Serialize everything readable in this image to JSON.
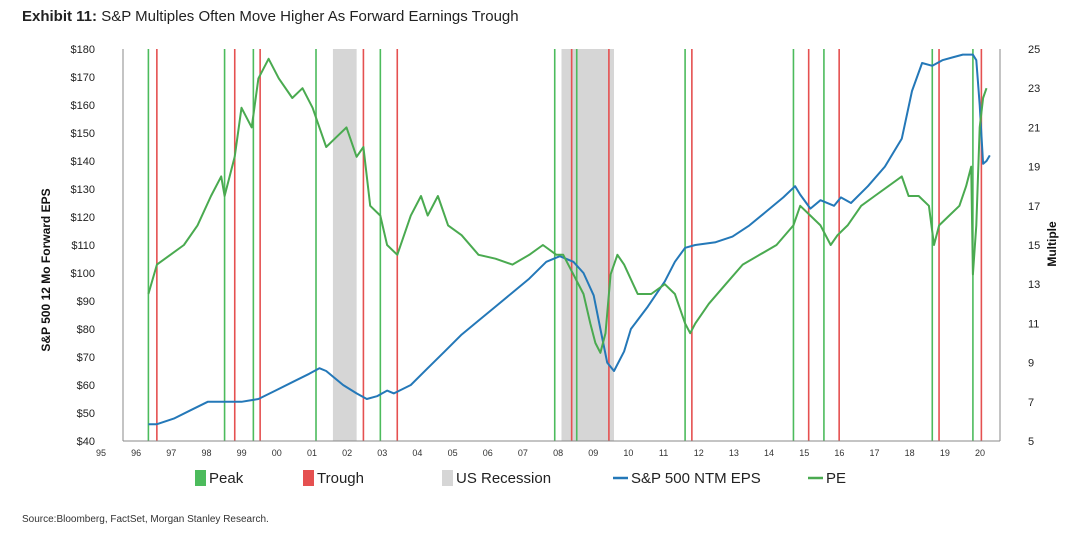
{
  "title": {
    "lead": "Exhibit 11:",
    "text": "S&P Multiples Often Move Higher As Forward Earnings Trough"
  },
  "source": "Source:Bloomberg, FactSet, Morgan Stanley Research.",
  "colors": {
    "peak": "#4cbb5c",
    "trough": "#e55050",
    "recession": "#d6d6d6",
    "eps": "#2478b8",
    "pe": "#4aaa50"
  },
  "chart_data": {
    "type": "line",
    "ylabel": "S&P 500 12 Mo Forward EPS",
    "y2label": "Multiple",
    "x_ticks": [
      "95",
      "96",
      "97",
      "98",
      "99",
      "00",
      "01",
      "02",
      "03",
      "04",
      "05",
      "06",
      "07",
      "08",
      "09",
      "10",
      "11",
      "12",
      "13",
      "14",
      "15",
      "16",
      "17",
      "18",
      "19",
      "20"
    ],
    "x_range": [
      1995,
      2020.9
    ],
    "y_left_ticks": [
      "$40",
      "$50",
      "$60",
      "$70",
      "$80",
      "$90",
      "$100",
      "$110",
      "$120",
      "$130",
      "$140",
      "$150",
      "$160",
      "$170",
      "$180"
    ],
    "y_left_range": [
      40,
      180
    ],
    "y_right_ticks": [
      "5",
      "7",
      "9",
      "11",
      "13",
      "15",
      "17",
      "19",
      "21",
      "23",
      "25"
    ],
    "y_right_range": [
      5,
      25
    ],
    "grid": false,
    "legend": {
      "position": "bottom",
      "items": [
        {
          "label": "Peak",
          "kind": "box",
          "color": "#4cbb5c"
        },
        {
          "label": "Trough",
          "kind": "box",
          "color": "#e55050"
        },
        {
          "label": "US Recession",
          "kind": "box",
          "color": "#d6d6d6"
        },
        {
          "label": "S&P 500 NTM EPS",
          "kind": "line",
          "color": "#2478b8"
        },
        {
          "label": "PE",
          "kind": "line",
          "color": "#4aaa50"
        }
      ]
    },
    "recessions": [
      [
        2001.2,
        2001.9
      ],
      [
        2007.95,
        2009.5
      ]
    ],
    "peaks": [
      1995.75,
      1998.0,
      1998.85,
      2000.7,
      2002.6,
      2007.75,
      2008.4,
      2011.6,
      2014.8,
      2015.7,
      2018.9,
      2020.1
    ],
    "troughs": [
      1996.0,
      1998.3,
      1999.05,
      2002.1,
      2003.1,
      2008.25,
      2009.35,
      2011.8,
      2015.25,
      2016.15,
      2019.1,
      2020.35
    ],
    "series": [
      {
        "name": "S&P 500 NTM EPS",
        "axis": "left",
        "color": "#2478b8",
        "x": [
          1995.75,
          1996.0,
          1996.5,
          1997.0,
          1997.5,
          1998.0,
          1998.5,
          1999.0,
          1999.5,
          2000.0,
          2000.5,
          2000.8,
          2001.0,
          2001.5,
          2001.9,
          2002.2,
          2002.5,
          2002.8,
          2003.0,
          2003.5,
          2004.0,
          2004.5,
          2005.0,
          2005.5,
          2006.0,
          2006.5,
          2007.0,
          2007.5,
          2007.9,
          2008.3,
          2008.6,
          2008.9,
          2009.1,
          2009.3,
          2009.5,
          2009.8,
          2010.0,
          2010.5,
          2011.0,
          2011.3,
          2011.6,
          2011.9,
          2012.5,
          2013.0,
          2013.5,
          2014.0,
          2014.5,
          2014.85,
          2015.0,
          2015.3,
          2015.6,
          2016.0,
          2016.2,
          2016.5,
          2017.0,
          2017.5,
          2018.0,
          2018.3,
          2018.6,
          2018.9,
          2019.2,
          2019.5,
          2019.8,
          2020.1,
          2020.2,
          2020.3,
          2020.4,
          2020.5,
          2020.6
        ],
        "y": [
          46,
          46,
          48,
          51,
          54,
          54,
          54,
          55,
          58,
          61,
          64,
          66,
          65,
          60,
          57,
          55,
          56,
          58,
          57,
          60,
          66,
          72,
          78,
          83,
          88,
          93,
          98,
          104,
          106,
          104,
          100,
          92,
          80,
          68,
          65,
          72,
          80,
          88,
          97,
          104,
          109,
          110,
          111,
          113,
          117,
          122,
          127,
          131,
          128,
          123,
          126,
          124,
          127,
          125,
          131,
          138,
          148,
          165,
          175,
          174,
          176,
          177,
          178,
          178,
          176,
          160,
          139,
          140,
          142
        ]
      },
      {
        "name": "PE",
        "axis": "right",
        "color": "#4aaa50",
        "x": [
          1995.75,
          1996.0,
          1996.4,
          1996.8,
          1997.2,
          1997.6,
          1997.9,
          1998.0,
          1998.3,
          1998.5,
          1998.8,
          1999.0,
          1999.3,
          1999.6,
          2000.0,
          2000.3,
          2000.6,
          2000.8,
          2001.0,
          2001.3,
          2001.6,
          2001.9,
          2002.1,
          2002.3,
          2002.6,
          2002.8,
          2003.1,
          2003.5,
          2003.8,
          2004.0,
          2004.3,
          2004.6,
          2005.0,
          2005.5,
          2006.0,
          2006.5,
          2007.0,
          2007.4,
          2007.8,
          2008.0,
          2008.3,
          2008.6,
          2008.8,
          2008.95,
          2009.1,
          2009.25,
          2009.4,
          2009.6,
          2009.8,
          2010.2,
          2010.6,
          2011.0,
          2011.3,
          2011.6,
          2011.75,
          2011.9,
          2012.3,
          2012.8,
          2013.3,
          2013.8,
          2014.3,
          2014.8,
          2015.0,
          2015.3,
          2015.6,
          2015.9,
          2016.1,
          2016.4,
          2016.8,
          2017.2,
          2017.6,
          2018.0,
          2018.2,
          2018.5,
          2018.8,
          2018.95,
          2019.1,
          2019.4,
          2019.7,
          2019.9,
          2020.05,
          2020.1,
          2020.2,
          2020.3,
          2020.4,
          2020.5
        ],
        "y": [
          12.5,
          14.0,
          14.5,
          15.0,
          16.0,
          17.5,
          18.5,
          17.5,
          19.5,
          22.0,
          21.0,
          23.5,
          24.5,
          23.5,
          22.5,
          23.0,
          22.0,
          21.0,
          20.0,
          20.5,
          21.0,
          19.5,
          20.0,
          17.0,
          16.5,
          15.0,
          14.5,
          16.5,
          17.5,
          16.5,
          17.5,
          16.0,
          15.5,
          14.5,
          14.3,
          14.0,
          14.5,
          15.0,
          14.5,
          14.5,
          13.5,
          12.5,
          11.0,
          10.0,
          9.5,
          10.5,
          13.5,
          14.5,
          14.0,
          12.5,
          12.5,
          13.0,
          12.5,
          11.0,
          10.5,
          11.0,
          12.0,
          13.0,
          14.0,
          14.5,
          15.0,
          16.0,
          17.0,
          16.5,
          16.0,
          15.0,
          15.5,
          16.0,
          17.0,
          17.5,
          18.0,
          18.5,
          17.5,
          17.5,
          17.0,
          15.0,
          16.0,
          16.5,
          17.0,
          18.0,
          19.0,
          13.5,
          16.0,
          21.0,
          22.5,
          23.0
        ]
      }
    ]
  }
}
